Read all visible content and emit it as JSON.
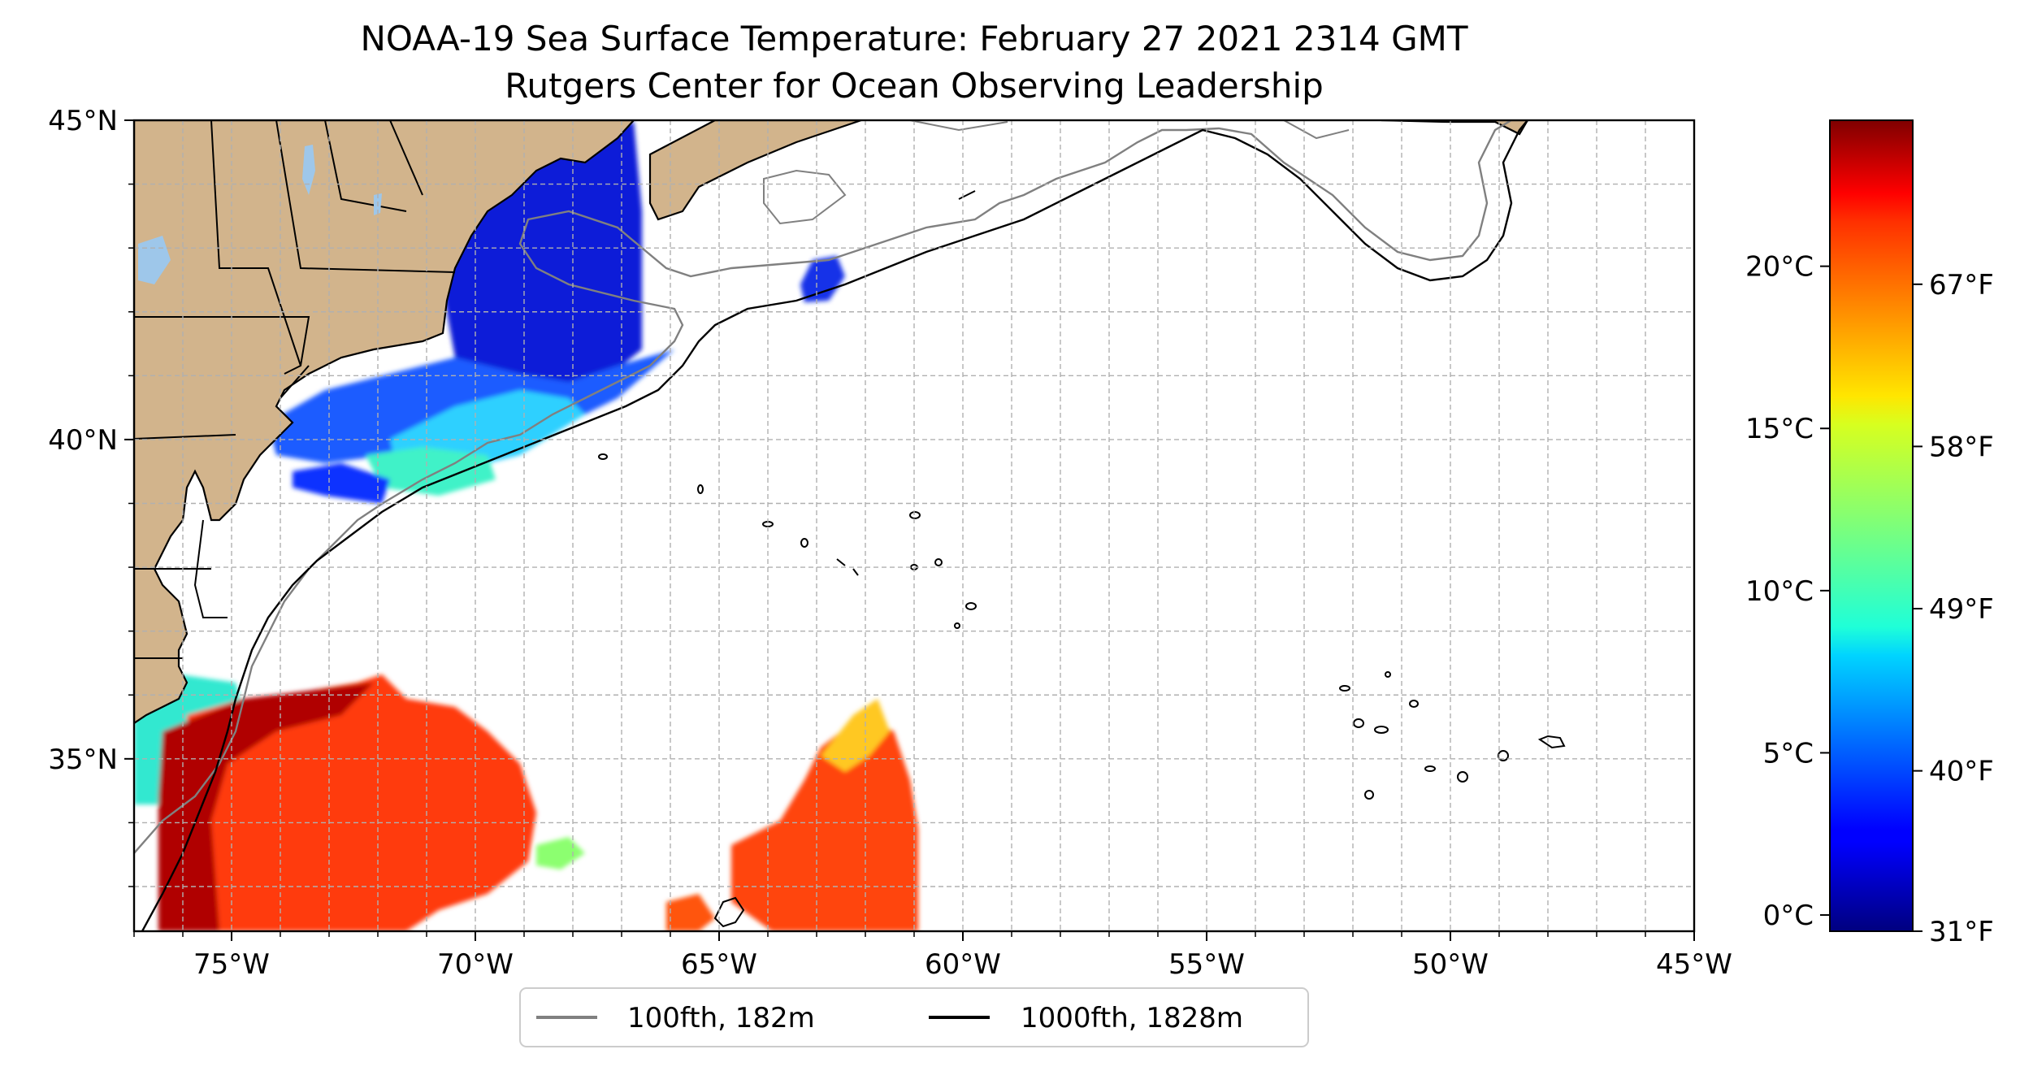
{
  "title": {
    "line1": "NOAA-19 Sea Surface Temperature: February 27 2021 2314 GMT",
    "line2": "Rutgers Center for Ocean Observing Leadership"
  },
  "map": {
    "lon_range": [
      -77,
      -45
    ],
    "lat_range": [
      32.3,
      45
    ],
    "x_ticks": [
      {
        "value": -75,
        "label": "75°W"
      },
      {
        "value": -70,
        "label": "70°W"
      },
      {
        "value": -65,
        "label": "65°W"
      },
      {
        "value": -60,
        "label": "60°W"
      },
      {
        "value": -55,
        "label": "55°W"
      },
      {
        "value": -50,
        "label": "50°W"
      },
      {
        "value": -45,
        "label": "45°W"
      }
    ],
    "y_ticks": [
      {
        "value": 45,
        "label": "45°N"
      },
      {
        "value": 40,
        "label": "40°N"
      },
      {
        "value": 35,
        "label": "35°N"
      }
    ],
    "grid": true,
    "grid_step_deg": 1,
    "land_color": "#d2b48c",
    "lake_color": "#9ec7ea"
  },
  "legend": {
    "placement": "bottom-center",
    "entries": [
      {
        "label": "100fth, 182m",
        "color": "#808080"
      },
      {
        "label": "1000fth, 1828m",
        "color": "#000000"
      }
    ]
  },
  "colorbar": {
    "colormap": "jet",
    "range_c": [
      -0.5,
      24.5
    ],
    "celsius_ticks": [
      {
        "value": 0,
        "label": "0°C"
      },
      {
        "value": 5,
        "label": "5°C"
      },
      {
        "value": 10,
        "label": "10°C"
      },
      {
        "value": 15,
        "label": "15°C"
      },
      {
        "value": 20,
        "label": "20°C"
      }
    ],
    "fahrenheit_ticks": [
      {
        "value": 31,
        "label": "31°F"
      },
      {
        "value": 40,
        "label": "40°F"
      },
      {
        "value": 49,
        "label": "49°F"
      },
      {
        "value": 58,
        "label": "58°F"
      },
      {
        "value": 67,
        "label": "67°F"
      }
    ]
  }
}
